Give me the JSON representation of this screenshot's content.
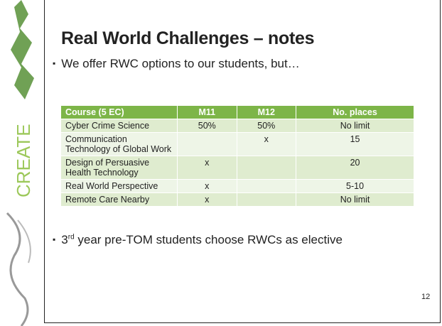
{
  "header": {
    "title": "Real World Challenges – notes"
  },
  "side_text": "CREATE",
  "bullets": [
    "We offer RWC options to our students, but…",
    [
      "3",
      "rd",
      " year pre-TOM students choose RWCs as elective"
    ]
  ],
  "table": {
    "columns": [
      "Course (5 EC)",
      "M11",
      "M12",
      "No. places"
    ],
    "rows": [
      [
        "Cyber Crime Science",
        "50%",
        "50%",
        "No limit"
      ],
      [
        "Communication Technology of Global Work",
        null,
        "x",
        "15"
      ],
      [
        "Design of Persuasive Health Technology",
        "x",
        null,
        "20"
      ],
      [
        "Real World Perspective",
        "x",
        null,
        "5-10"
      ],
      [
        "Remote Care Nearby",
        "x",
        null,
        "No limit"
      ]
    ]
  },
  "page_number": "12"
}
